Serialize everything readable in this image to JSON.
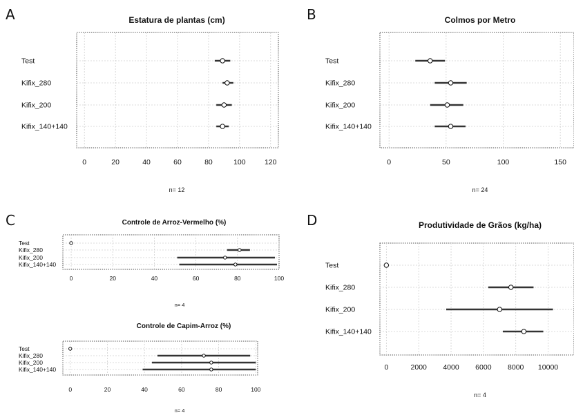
{
  "chart_data": [
    {
      "panel": "A",
      "type": "scatter",
      "title": "Estatura de plantas (cm)",
      "categories": [
        "Test",
        "Kifix_280",
        "Kifix_200",
        "Kifix_140+140"
      ],
      "mean": [
        89,
        92,
        90,
        89
      ],
      "lower": [
        84,
        89,
        85,
        85
      ],
      "upper": [
        94,
        96,
        95,
        93
      ],
      "xlim": [
        -5,
        125
      ],
      "xticks": [
        "0",
        "20",
        "40",
        "60",
        "80",
        "100",
        "120"
      ],
      "xtick_values": [
        0,
        20,
        40,
        60,
        80,
        100,
        120
      ],
      "n_label": "n= 12",
      "grid": true
    },
    {
      "panel": "B",
      "type": "scatter",
      "title": "Colmos por Metro",
      "categories": [
        "Test",
        "Kifix_280",
        "Kifix_200",
        "Kifix_140+140"
      ],
      "mean": [
        36,
        54,
        51,
        54
      ],
      "lower": [
        23,
        40,
        36,
        40
      ],
      "upper": [
        49,
        68,
        65,
        67
      ],
      "xlim": [
        -8,
        162
      ],
      "xticks": [
        "0",
        "50",
        "100",
        "150"
      ],
      "xtick_values": [
        0,
        50,
        100,
        150
      ],
      "n_label": "n= 24",
      "grid": true
    },
    {
      "panel": "C",
      "type": "scatter",
      "title": "Controle de Arroz-Vermelho (%)",
      "categories": [
        "Test",
        "Kifix_280",
        "Kifix_200",
        "Kifix_140+140"
      ],
      "mean": [
        0,
        81,
        74,
        79
      ],
      "lower": [
        0,
        75,
        51,
        52
      ],
      "upper": [
        0,
        86,
        98,
        99
      ],
      "xlim": [
        -4,
        100
      ],
      "xticks": [
        "0",
        "20",
        "40",
        "60",
        "80",
        "100"
      ],
      "xtick_values": [
        0,
        20,
        40,
        60,
        80,
        100
      ],
      "n_label": "n= 4",
      "grid": true
    },
    {
      "panel": "C",
      "type": "scatter",
      "title": "Controle de Capim-Arroz (%)",
      "categories": [
        "Test",
        "Kifix_280",
        "Kifix_200",
        "Kifix_140+140"
      ],
      "mean": [
        0,
        72,
        76,
        76
      ],
      "lower": [
        0,
        47,
        44,
        39
      ],
      "upper": [
        0,
        97,
        100,
        100
      ],
      "xlim": [
        -4,
        101
      ],
      "xticks": [
        "0",
        "20",
        "40",
        "60",
        "80",
        "100"
      ],
      "xtick_values": [
        0,
        20,
        40,
        60,
        80,
        100
      ],
      "n_label": "n= 4",
      "grid": true
    },
    {
      "panel": "D",
      "type": "scatter",
      "title": "Produtividade de Grãos (kg/ha)",
      "categories": [
        "Test",
        "Kifix_280",
        "Kifix_200",
        "Kifix_140+140"
      ],
      "mean": [
        0,
        7700,
        7000,
        8500
      ],
      "lower": [
        0,
        6300,
        3700,
        7200
      ],
      "upper": [
        0,
        9100,
        10300,
        9700
      ],
      "xlim": [
        -400,
        11600
      ],
      "xticks": [
        "0",
        "2000",
        "4000",
        "6000",
        "8000",
        "10000"
      ],
      "xtick_values": [
        0,
        2000,
        4000,
        6000,
        8000,
        10000
      ],
      "n_label": "n= 4",
      "grid": true
    }
  ],
  "panel_letters": [
    "A",
    "B",
    "C",
    "D"
  ]
}
